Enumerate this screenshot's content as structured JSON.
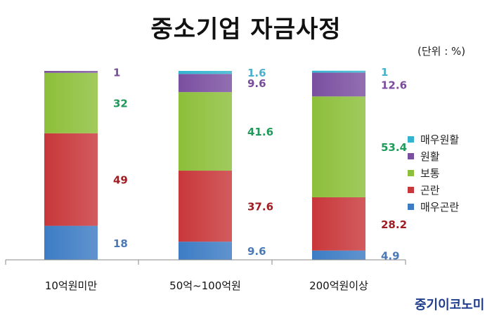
{
  "chart_data": {
    "type": "bar",
    "stacked": true,
    "title": "중소기업 자금사정",
    "unit": "(단위 : %)",
    "categories": [
      "10억원미만",
      "50억~100억원",
      "200억원이상"
    ],
    "series": [
      {
        "name": "매우곤란",
        "color": "#3d7cc4",
        "label_color": "#4a79b8",
        "values": [
          18,
          9.6,
          4.9
        ]
      },
      {
        "name": "곤란",
        "color": "#c8373a",
        "label_color": "#9f1d22",
        "values": [
          49,
          37.6,
          28.2
        ]
      },
      {
        "name": "보통",
        "color": "#8cbf3a",
        "label_color": "#1f9a5a",
        "values": [
          32,
          41.6,
          53.4
        ]
      },
      {
        "name": "원활",
        "color": "#7a4fa0",
        "label_color": "#7a4b9c",
        "values": [
          1,
          9.6,
          12.6
        ]
      },
      {
        "name": "매우원활",
        "color": "#33b3cf",
        "label_color": "#4ab0cc",
        "values": [
          null,
          1.6,
          1
        ]
      }
    ],
    "legend_position": "right",
    "ylim": [
      0,
      100
    ]
  },
  "legend_order": [
    4,
    3,
    2,
    1,
    0
  ],
  "brand": "중기이코노미"
}
